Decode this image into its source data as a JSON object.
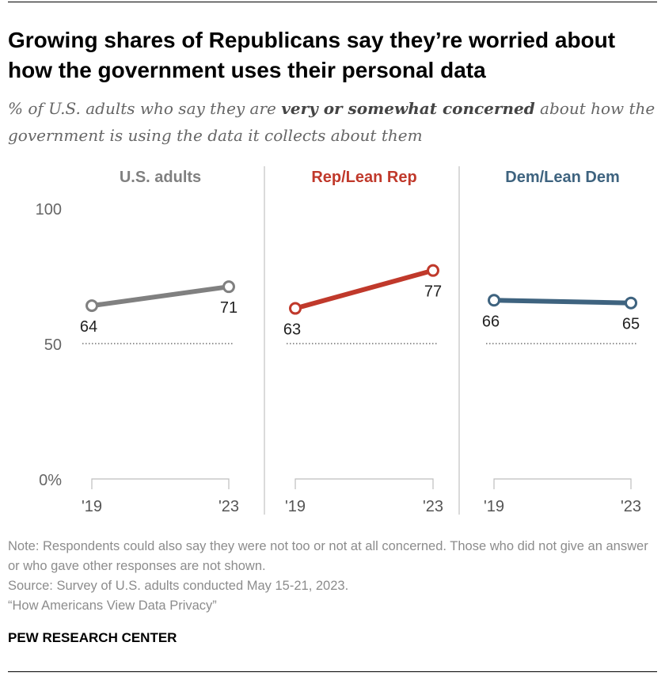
{
  "title": "Growing shares of Republicans say they’re worried about how the government uses their personal data",
  "subtitle": {
    "before": "% of U.S. adults who say they are ",
    "emphasis": "very or somewhat concerned",
    "after": " about how the government is using the data it collects about them"
  },
  "chart_data": {
    "type": "line",
    "x": [
      "'19",
      "'23"
    ],
    "y_ticks": [
      "100",
      "50",
      "0%"
    ],
    "ylim": [
      0,
      100
    ],
    "reference_line": 50,
    "panels": [
      {
        "name": "U.S. adults",
        "color": "#808080",
        "values": [
          64,
          71
        ]
      },
      {
        "name": "Rep/Lean Rep",
        "color": "#c0392b",
        "values": [
          63,
          77
        ]
      },
      {
        "name": "Dem/Lean Dem",
        "color": "#3e637f",
        "values": [
          66,
          65
        ]
      }
    ]
  },
  "notes": {
    "note": "Note: Respondents could also say they were not too or not at all concerned. Those who did not give an answer or who gave other responses are not shown.",
    "source": "Source: Survey of U.S. adults conducted May 15-21, 2023.",
    "report": "“How Americans View Data Privacy”"
  },
  "org": "PEW RESEARCH CENTER"
}
